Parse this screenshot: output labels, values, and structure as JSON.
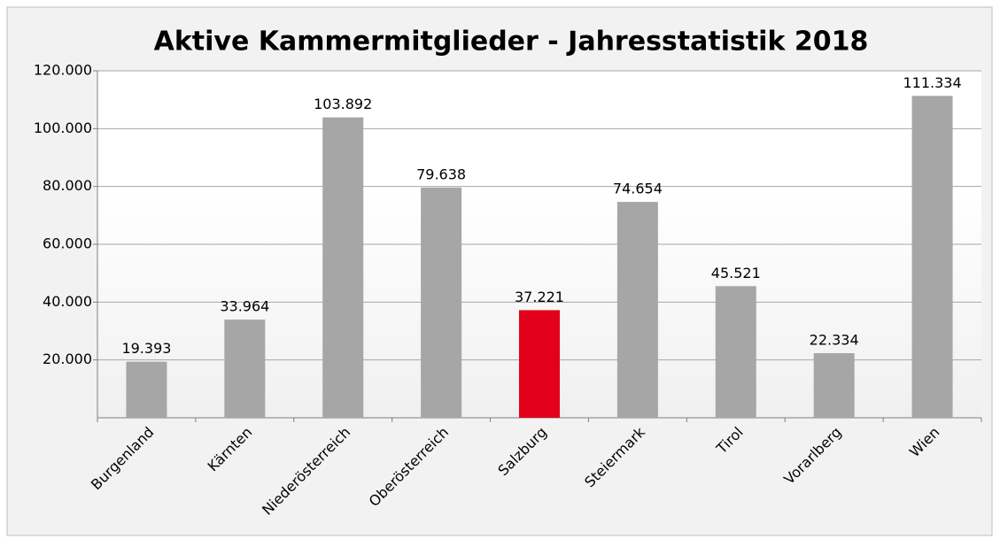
{
  "chart_data": {
    "type": "bar",
    "title": "Aktive Kammermitglieder - Jahresstatistik 2018",
    "categories": [
      "Burgenland",
      "Kärnten",
      "Niederösterreich",
      "Oberösterreich",
      "Salzburg",
      "Steiermark",
      "Tirol",
      "Vorarlberg",
      "Wien"
    ],
    "values": [
      19393,
      33964,
      103892,
      79638,
      37221,
      74654,
      45521,
      22334,
      111334
    ],
    "value_labels": [
      "19.393",
      "33.964",
      "103.892",
      "79.638",
      "37.221",
      "74.654",
      "45.521",
      "22.334",
      "111.334"
    ],
    "colors": [
      "#a6a6a6",
      "#a6a6a6",
      "#a6a6a6",
      "#a6a6a6",
      "#e2001a",
      "#a6a6a6",
      "#a6a6a6",
      "#a6a6a6",
      "#a6a6a6"
    ],
    "ylim": [
      0,
      120000
    ],
    "yticks": [
      {
        "value": 20000,
        "label": "20.000"
      },
      {
        "value": 40000,
        "label": "40.000"
      },
      {
        "value": 60000,
        "label": "60.000"
      },
      {
        "value": 80000,
        "label": "80.000"
      },
      {
        "value": 100000,
        "label": "100.000"
      },
      {
        "value": 120000,
        "label": "120.000"
      }
    ],
    "grid": true
  }
}
